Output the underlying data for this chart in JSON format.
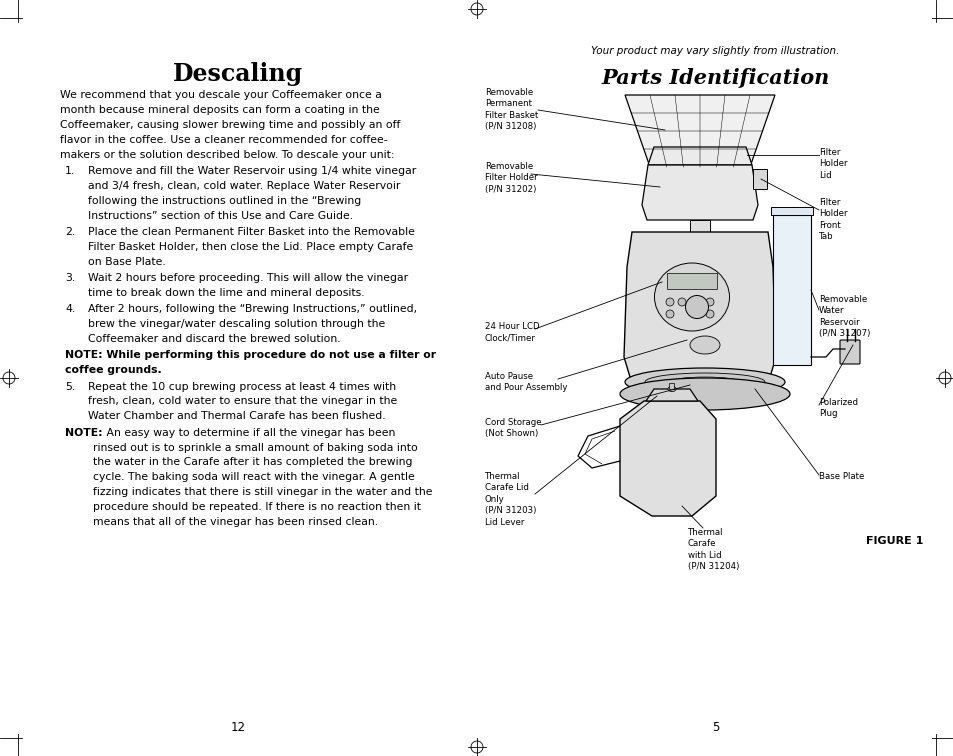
{
  "bg_color": "#ffffff",
  "page_width": 9.54,
  "page_height": 7.56,
  "left_title": "Descaling",
  "right_subtitle": "Your product may vary slightly from illustration.",
  "right_title": "Parts Identification",
  "left_intro": "We recommend that you descale your Coffeemaker once a month because mineral deposits can form a coating in the Coffeemaker, causing slower brewing time and possibly an off flavor in the coffee. Use a cleaner recommended for coffee-makers or the solution described below. To descale your unit:",
  "item1": "Remove and fill the Water Reservoir using 1/4 white vinegar and 3/4 fresh, clean, cold water. Replace Water Reservoir following the instructions outlined in the “Brewing Instructions” section of this Use and Care Guide.",
  "item2": "Place the clean Permanent Filter Basket into the Removable Filter Basket Holder, then close the Lid. Place empty Carafe on Base Plate.",
  "item3": "Wait 2 hours before proceeding. This will allow the vinegar time to break down the lime and mineral deposits.",
  "item4": "After 2 hours, following the “Brewing Instructions,” outlined, brew the vinegar/water descaling solution through the Coffeemaker and discard the brewed solution.",
  "note1": "NOTE: While performing this procedure do not use a filter or coffee grounds.",
  "item5": "Repeat the 10 cup brewing process at least 4 times with fresh, clean, cold water to ensure that the vinegar in the Water Chamber and Thermal Carafe has been flushed.",
  "note2_label": "NOTE:",
  "note2_body": " An easy way to determine if all the vinegar has been rinsed out is to sprinkle a small amount of baking soda into the water in the Carafe after it has completed the brewing cycle. The baking soda will react with the vinegar. A gentle fizzing indicates that there is still vinegar in the water and the procedure should be repeated. If there is no reaction then it means that all of the vinegar has been rinsed clean.",
  "page_num_left": "12",
  "page_num_right": "5",
  "figure_label": "FIGURE 1",
  "label_removable_basket": "Removable\nPermanent\nFilter Basket\n(P/N 31208)",
  "label_filter_holder": "Removable\nFilter Holder\n(P/N 31202)",
  "label_lcd": "24 Hour LCD\nClock/Timer",
  "label_auto_pause": "Auto Pause\nand Pour Assembly",
  "label_cord": "Cord Storage\n(Not Shown)",
  "label_carafe_lid": "Thermal\nCarafe Lid\nOnly\n(P/N 31203)\nLid Lever",
  "label_filter_holder_lid": "Filter\nHolder\nLid",
  "label_filter_front_tab": "Filter\nHolder\nFront\nTab",
  "label_water_reservoir": "Removable\nWater\nReservoir\n(P/N 31207)",
  "label_plug": "Polarized\nPlug",
  "label_base_plate": "Base Plate",
  "label_thermal_carafe": "Thermal\nCarafe\nwith Lid\n(P/N 31204)"
}
